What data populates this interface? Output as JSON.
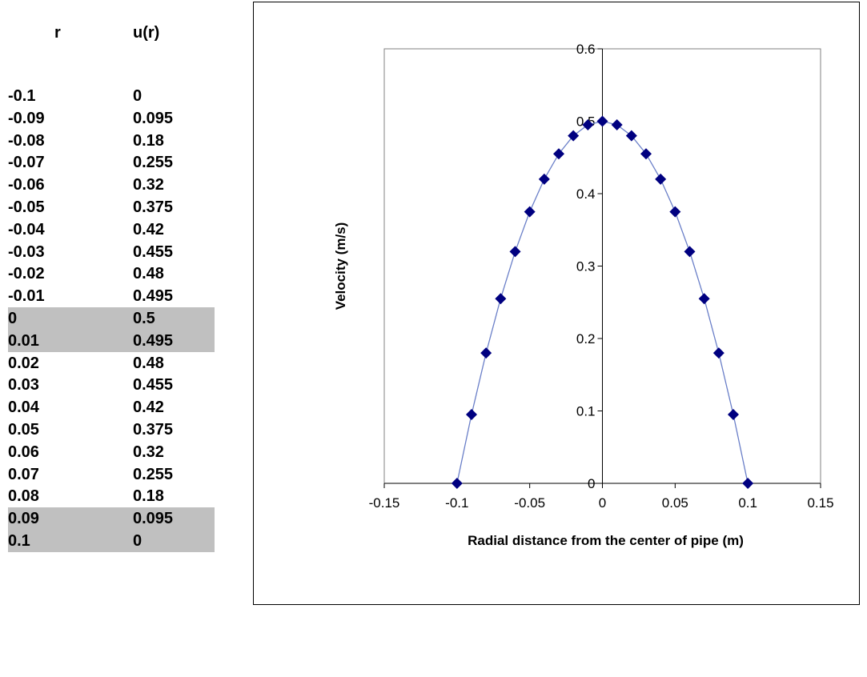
{
  "table": {
    "headers": [
      "r",
      "u(r)"
    ],
    "rows": [
      {
        "r": "-0.1",
        "u": "0",
        "shaded": false
      },
      {
        "r": "-0.09",
        "u": "0.095",
        "shaded": false
      },
      {
        "r": "-0.08",
        "u": "0.18",
        "shaded": false
      },
      {
        "r": "-0.07",
        "u": "0.255",
        "shaded": false
      },
      {
        "r": "-0.06",
        "u": "0.32",
        "shaded": false
      },
      {
        "r": "-0.05",
        "u": "0.375",
        "shaded": false
      },
      {
        "r": "-0.04",
        "u": "0.42",
        "shaded": false
      },
      {
        "r": "-0.03",
        "u": "0.455",
        "shaded": false
      },
      {
        "r": "-0.02",
        "u": "0.48",
        "shaded": false
      },
      {
        "r": "-0.01",
        "u": "0.495",
        "shaded": false
      },
      {
        "r": "0",
        "u": "0.5",
        "shaded": true
      },
      {
        "r": "0.01",
        "u": "0.495",
        "shaded": true
      },
      {
        "r": "0.02",
        "u": "0.48",
        "shaded": false
      },
      {
        "r": "0.03",
        "u": "0.455",
        "shaded": false
      },
      {
        "r": "0.04",
        "u": "0.42",
        "shaded": false
      },
      {
        "r": "0.05",
        "u": "0.375",
        "shaded": false
      },
      {
        "r": "0.06",
        "u": "0.32",
        "shaded": false
      },
      {
        "r": "0.07",
        "u": "0.255",
        "shaded": false
      },
      {
        "r": "0.08",
        "u": "0.18",
        "shaded": false
      },
      {
        "r": "0.09",
        "u": "0.095",
        "shaded": true
      },
      {
        "r": "0.1",
        "u": "0",
        "shaded": true
      }
    ]
  },
  "chart_data": {
    "type": "scatter",
    "title": "",
    "xlabel": "Radial distance from the center of pipe (m)",
    "ylabel": "Velocity (m/s)",
    "xlim": [
      -0.15,
      0.15
    ],
    "ylim": [
      0,
      0.6
    ],
    "x_ticks": [
      -0.15,
      -0.1,
      -0.05,
      0,
      0.05,
      0.1,
      0.15
    ],
    "x_tick_labels": [
      "-0.15",
      "-0.1",
      "-0.05",
      "0",
      "0.05",
      "0.1",
      "0.15"
    ],
    "y_ticks": [
      0,
      0.1,
      0.2,
      0.3,
      0.4,
      0.5,
      0.6
    ],
    "y_tick_labels": [
      "0",
      "0.1",
      "0.2",
      "0.3",
      "0.4",
      "0.5",
      "0.6"
    ],
    "grid": false,
    "marker": "diamond",
    "connected": true,
    "series": [
      {
        "x": [
          -0.1,
          -0.09,
          -0.08,
          -0.07,
          -0.06,
          -0.05,
          -0.04,
          -0.03,
          -0.02,
          -0.01,
          0,
          0.01,
          0.02,
          0.03,
          0.04,
          0.05,
          0.06,
          0.07,
          0.08,
          0.09,
          0.1
        ],
        "y": [
          0,
          0.095,
          0.18,
          0.255,
          0.32,
          0.375,
          0.42,
          0.455,
          0.48,
          0.495,
          0.5,
          0.495,
          0.48,
          0.455,
          0.42,
          0.375,
          0.32,
          0.255,
          0.18,
          0.095,
          0
        ],
        "line_color": "#6a7fc8",
        "marker_color": "#000080"
      }
    ]
  }
}
